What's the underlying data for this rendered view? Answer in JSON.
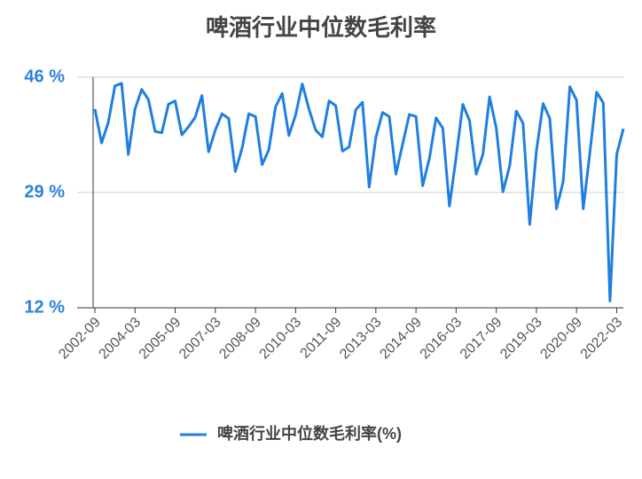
{
  "chart_data": {
    "type": "line",
    "title": "啤酒行业中位数毛利率",
    "categories": [
      "2002-09",
      null,
      null,
      null,
      null,
      null,
      "2004-03",
      null,
      null,
      null,
      null,
      null,
      "2005-09",
      null,
      null,
      null,
      null,
      null,
      "2007-03",
      null,
      null,
      null,
      null,
      null,
      "2008-09",
      null,
      null,
      null,
      null,
      null,
      "2010-03",
      null,
      null,
      null,
      null,
      null,
      "2011-09",
      null,
      null,
      null,
      null,
      null,
      "2013-03",
      null,
      null,
      null,
      null,
      null,
      "2014-09",
      null,
      null,
      null,
      null,
      null,
      "2016-03",
      null,
      null,
      null,
      null,
      null,
      "2017-09",
      null,
      null,
      null,
      null,
      null,
      "2019-03",
      null,
      null,
      null,
      null,
      null,
      "2020-09",
      null,
      null,
      null,
      null,
      null,
      "2022-03",
      null
    ],
    "series": [
      {
        "name": "啤酒行业中位数毛利率(%)",
        "color": "#1f7fe0",
        "values": [
          41.3,
          36.3,
          39.3,
          44.7,
          45.1,
          34.6,
          41.3,
          44.2,
          42.7,
          38.0,
          37.8,
          42.0,
          42.5,
          37.5,
          38.7,
          40.1,
          43.3,
          35.0,
          38.2,
          40.6,
          39.9,
          32.1,
          35.5,
          40.6,
          40.2,
          33.1,
          35.3,
          41.6,
          43.6,
          37.4,
          40.4,
          45.0,
          41.3,
          38.2,
          37.2,
          42.5,
          41.8,
          35.1,
          35.7,
          41.2,
          42.3,
          29.8,
          37.1,
          40.8,
          40.2,
          31.7,
          36.1,
          40.5,
          40.2,
          30.0,
          34.0,
          40.0,
          38.5,
          27.0,
          34.2,
          42.0,
          39.6,
          31.7,
          34.6,
          43.1,
          38.5,
          29.1,
          32.9,
          41.0,
          39.2,
          24.3,
          35.1,
          42.1,
          39.9,
          26.6,
          30.6,
          44.6,
          42.6,
          26.6,
          34.9,
          43.8,
          42.2,
          13.0,
          34.6,
          38.4
        ]
      }
    ],
    "ylim": [
      12,
      46
    ],
    "yticks": [
      {
        "value": 12,
        "label": "12 %"
      },
      {
        "value": 29,
        "label": "29 %"
      },
      {
        "value": 46,
        "label": "46 %"
      }
    ],
    "grid": true,
    "legend": "bottom"
  }
}
